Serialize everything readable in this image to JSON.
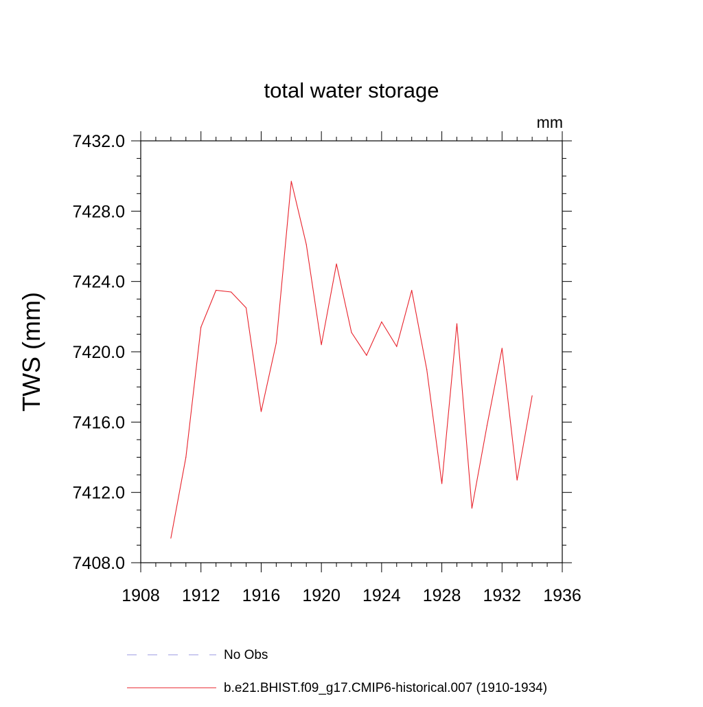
{
  "chart_data": {
    "type": "line",
    "title": "total water storage",
    "units_label": "mm",
    "ylabel": "TWS  (mm)",
    "xlabel": "",
    "xlim": [
      1908,
      1936
    ],
    "ylim": [
      7408.0,
      7432.0
    ],
    "x_ticks": [
      1908,
      1912,
      1916,
      1920,
      1924,
      1928,
      1932,
      1936
    ],
    "y_ticks": [
      "7408.0",
      "7412.0",
      "7416.0",
      "7420.0",
      "7424.0",
      "7428.0",
      "7432.0"
    ],
    "grid": false,
    "legend_position": "bottom",
    "legend": [
      {
        "label": "No Obs",
        "style": "dashed",
        "color": "#9a97e0"
      },
      {
        "label": "b.e21.BHIST.f09_g17.CMIP6-historical.007 (1910-1934)",
        "style": "solid",
        "color": "#e8212a"
      }
    ],
    "series": [
      {
        "color": "#e8212a",
        "x": [
          1910,
          1911,
          1912,
          1913,
          1914,
          1915,
          1916,
          1917,
          1918,
          1919,
          1920,
          1921,
          1922,
          1923,
          1924,
          1925,
          1926,
          1927,
          1928,
          1929,
          1930,
          1931,
          1932,
          1933,
          1934
        ],
        "y": [
          7409.4,
          7414.0,
          7421.4,
          7423.5,
          7423.4,
          7422.5,
          7416.6,
          7420.5,
          7429.7,
          7426.1,
          7420.4,
          7425.0,
          7421.1,
          7419.8,
          7421.7,
          7420.3,
          7423.5,
          7419.0,
          7412.5,
          7421.6,
          7411.1,
          7415.8,
          7420.2,
          7412.7,
          7417.5
        ]
      }
    ]
  }
}
